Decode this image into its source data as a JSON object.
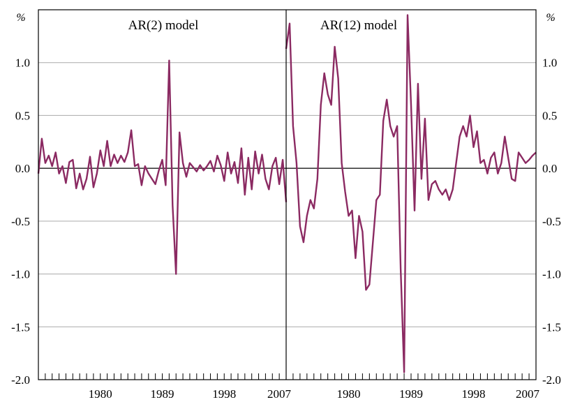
{
  "chart_data": [
    {
      "type": "line",
      "title": "AR(2) model",
      "unit_left": "%",
      "xlabel": "",
      "ylabel": "",
      "ylim": [
        -2.0,
        1.5
      ],
      "yticks": [
        1.0,
        0.5,
        0.0,
        -0.5,
        -1.0,
        -1.5,
        -2.0
      ],
      "ytick_labels": [
        "1.0",
        "0.5",
        "0.0",
        "-0.5",
        "-1.0",
        "-1.5",
        "-2.0"
      ],
      "xlim": [
        1971,
        2007
      ],
      "xticks": [
        1980,
        1989,
        1998,
        2007
      ],
      "xtick_labels": [
        "1980",
        "1989",
        "1998",
        "2007"
      ],
      "grid": "horizontal",
      "color": "#8b2a62",
      "series": [
        {
          "x": [
            1971.0,
            1971.5,
            1972.0,
            1972.5,
            1973.0,
            1973.5,
            1974.0,
            1974.5,
            1975.0,
            1975.5,
            1976.0,
            1976.5,
            1977.0,
            1977.5,
            1978.0,
            1978.5,
            1979.0,
            1979.5,
            1980.0,
            1980.5,
            1981.0,
            1981.5,
            1982.0,
            1982.5,
            1983.0,
            1983.5,
            1984.0,
            1984.5,
            1985.0,
            1985.5,
            1986.0,
            1986.5,
            1987.0,
            1987.5,
            1988.0,
            1988.5,
            1989.0,
            1989.5,
            1990.0,
            1990.5,
            1991.0,
            1991.5,
            1992.0,
            1992.5,
            1993.0,
            1993.5,
            1994.0,
            1994.5,
            1995.0,
            1995.5,
            1996.0,
            1996.5,
            1997.0,
            1997.5,
            1998.0,
            1998.5,
            1999.0,
            1999.5,
            2000.0,
            2000.5,
            2001.0,
            2001.5,
            2002.0,
            2002.5,
            2003.0,
            2003.5,
            2004.0,
            2004.5,
            2005.0,
            2005.5,
            2006.0,
            2006.5,
            2007.0
          ],
          "y": [
            -0.05,
            0.28,
            0.05,
            0.12,
            0.02,
            0.15,
            -0.05,
            0.02,
            -0.14,
            0.06,
            0.08,
            -0.19,
            -0.05,
            -0.2,
            -0.1,
            0.11,
            -0.18,
            -0.05,
            0.17,
            0.02,
            0.26,
            0.02,
            0.13,
            0.05,
            0.12,
            0.06,
            0.15,
            0.36,
            0.02,
            0.04,
            -0.16,
            0.02,
            -0.05,
            -0.1,
            -0.15,
            -0.02,
            0.08,
            -0.16,
            1.02,
            -0.35,
            -1.0,
            0.34,
            0.05,
            -0.08,
            0.05,
            0.01,
            -0.03,
            0.03,
            -0.02,
            0.02,
            0.07,
            -0.03,
            0.12,
            0.03,
            -0.12,
            0.15,
            -0.05,
            0.06,
            -0.14,
            0.19,
            -0.25,
            0.1,
            -0.2,
            0.16,
            -0.05,
            0.13,
            -0.1,
            -0.2,
            0.02,
            0.1,
            -0.15,
            0.08,
            -0.32
          ]
        }
      ]
    },
    {
      "type": "line",
      "title": "AR(12) model",
      "unit_right": "%",
      "xlabel": "",
      "ylabel": "",
      "ylim": [
        -2.0,
        1.5
      ],
      "yticks": [
        1.0,
        0.5,
        0.0,
        -0.5,
        -1.0,
        -1.5,
        -2.0
      ],
      "ytick_labels": [
        "1.0",
        "0.5",
        "0.0",
        "-0.5",
        "-1.0",
        "-1.5",
        "-2.0"
      ],
      "xlim": [
        1971,
        2007
      ],
      "xticks": [
        1980,
        1989,
        1998,
        2007
      ],
      "xtick_labels": [
        "1980",
        "1989",
        "1998",
        "2007"
      ],
      "grid": "horizontal",
      "color": "#8b2a62",
      "series": [
        {
          "x": [
            1971.0,
            1971.5,
            1972.0,
            1972.5,
            1973.0,
            1973.5,
            1974.0,
            1974.5,
            1975.0,
            1975.5,
            1976.0,
            1976.5,
            1977.0,
            1977.5,
            1978.0,
            1978.5,
            1979.0,
            1979.5,
            1980.0,
            1980.5,
            1981.0,
            1981.5,
            1982.0,
            1982.5,
            1983.0,
            1983.5,
            1984.0,
            1984.5,
            1985.0,
            1985.5,
            1986.0,
            1986.5,
            1987.0,
            1987.5,
            1988.0,
            1988.5,
            1989.0,
            1989.5,
            1990.0,
            1990.5,
            1991.0,
            1991.5,
            1992.0,
            1992.5,
            1993.0,
            1993.5,
            1994.0,
            1994.5,
            1995.0,
            1995.5,
            1996.0,
            1996.5,
            1997.0,
            1997.5,
            1998.0,
            1998.5,
            1999.0,
            1999.5,
            2000.0,
            2000.5,
            2001.0,
            2001.5,
            2002.0,
            2002.5,
            2003.0,
            2003.5,
            2004.0,
            2004.5,
            2005.0,
            2005.5,
            2006.0,
            2006.5,
            2007.0
          ],
          "y": [
            1.13,
            1.37,
            0.4,
            0.05,
            -0.55,
            -0.7,
            -0.45,
            -0.3,
            -0.38,
            -0.1,
            0.6,
            0.9,
            0.7,
            0.6,
            1.15,
            0.85,
            0.05,
            -0.22,
            -0.45,
            -0.4,
            -0.85,
            -0.45,
            -0.6,
            -1.15,
            -1.1,
            -0.7,
            -0.3,
            -0.25,
            0.45,
            0.65,
            0.4,
            0.3,
            0.4,
            -0.95,
            -1.93,
            1.45,
            0.6,
            -0.4,
            0.8,
            -0.1,
            0.47,
            -0.3,
            -0.15,
            -0.12,
            -0.2,
            -0.25,
            -0.2,
            -0.3,
            -0.2,
            0.05,
            0.3,
            0.4,
            0.3,
            0.5,
            0.2,
            0.35,
            0.05,
            0.08,
            -0.05,
            0.1,
            0.15,
            -0.05,
            0.05,
            0.3,
            0.1,
            -0.1,
            -0.12,
            0.15,
            0.1,
            0.05,
            0.08,
            0.12,
            0.15
          ]
        }
      ]
    }
  ]
}
